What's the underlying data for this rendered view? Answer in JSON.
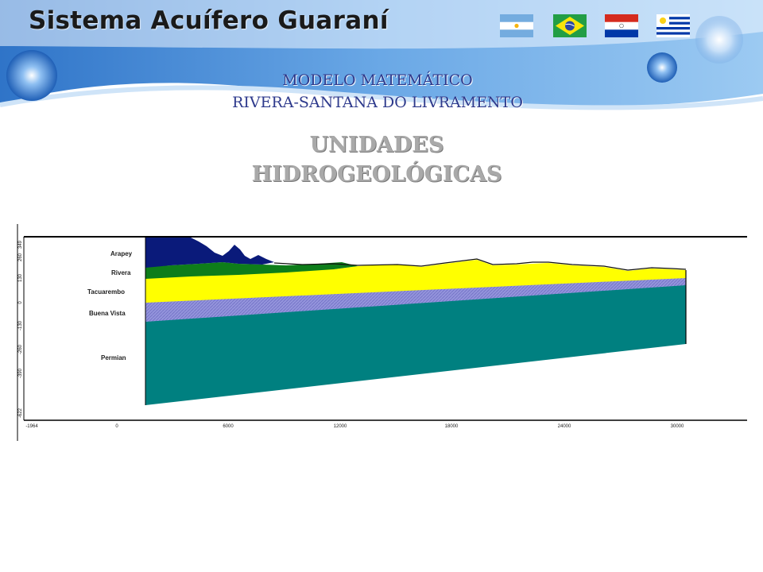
{
  "app_title": "Sistema Acuífero Guaraní",
  "subtitle_line1": "MODELO MATEMÁTICO",
  "subtitle_line2": "RIVERA-SANTANA DO LIVRAMENTO",
  "heading_line1": "UNIDADES",
  "heading_line2": "HIDROGEOLÓGICAS",
  "flags": [
    "argentina",
    "brazil",
    "paraguay",
    "uruguay"
  ],
  "colors": {
    "arapey": "#0a1a7a",
    "rivera": "#0e7d1a",
    "tacuarembo": "#ffff00",
    "buena_vista": "#8e8ed8",
    "permian": "#008080"
  },
  "section": {
    "layers": [
      {
        "key": "arapey",
        "label": "Arapey"
      },
      {
        "key": "rivera",
        "label": "Rivera"
      },
      {
        "key": "tacuarembo",
        "label": "Tacuarembo"
      },
      {
        "key": "buena_vista",
        "label": "Buena Vista"
      },
      {
        "key": "permian",
        "label": "Permian"
      }
    ],
    "y_ticks": [
      "349",
      "260",
      "130",
      "0",
      "-130",
      "-260",
      "-390",
      "-622"
    ],
    "x_ticks": [
      "-1964",
      "0",
      "6000",
      "12000",
      "18000",
      "24000",
      "30000"
    ]
  }
}
